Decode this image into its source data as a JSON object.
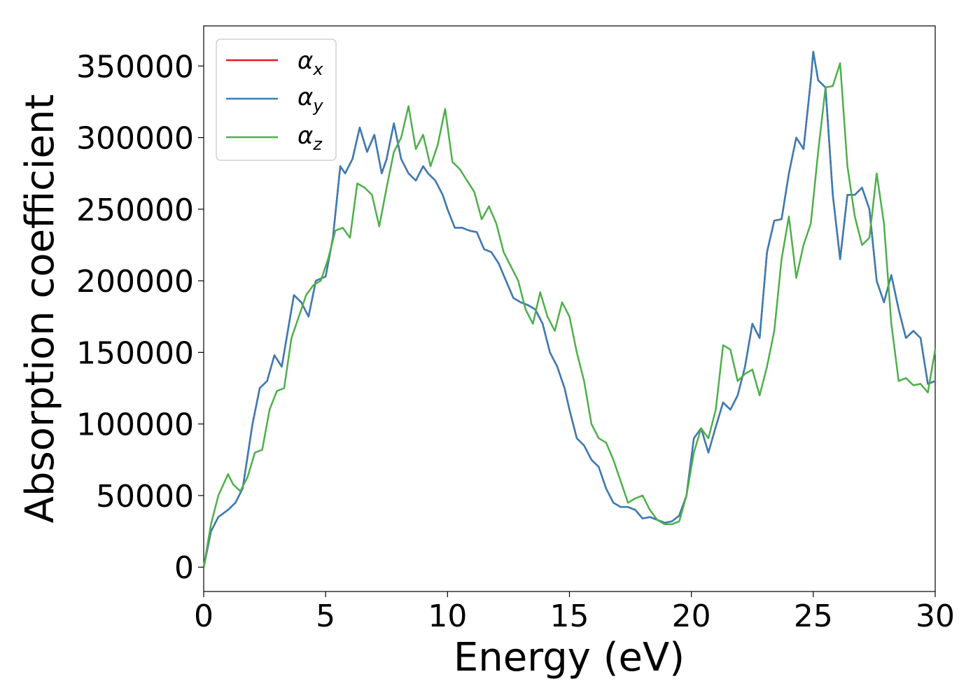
{
  "chart_data": {
    "type": "line",
    "title": "",
    "xlabel": "Energy (eV)",
    "ylabel": "Absorption coefficient",
    "xlim": [
      0,
      30
    ],
    "ylim": [
      -17000,
      378000
    ],
    "xticks": [
      0,
      5,
      10,
      15,
      20,
      25,
      30
    ],
    "yticks": [
      0,
      50000,
      100000,
      150000,
      200000,
      250000,
      300000,
      350000
    ],
    "grid": false,
    "legend_position": "top-left",
    "legend": [
      {
        "symbol": "α",
        "subscript": "x"
      },
      {
        "symbol": "α",
        "subscript": "y"
      },
      {
        "symbol": "α",
        "subscript": "z"
      }
    ],
    "series": [
      {
        "name": "αx",
        "color": "#e41a1c",
        "x": [
          0,
          0.3,
          0.6,
          1.0,
          1.3,
          1.6,
          2.0,
          2.3,
          2.6,
          2.9,
          3.2,
          3.5,
          3.7,
          4.0,
          4.3,
          4.6,
          5.0,
          5.3,
          5.6,
          5.8,
          6.1,
          6.4,
          6.7,
          7.0,
          7.3,
          7.5,
          7.8,
          8.1,
          8.4,
          8.7,
          9.0,
          9.2,
          9.5,
          9.8,
          10.0,
          10.3,
          10.6,
          10.9,
          11.2,
          11.5,
          11.8,
          12.1,
          12.4,
          12.7,
          13.0,
          13.3,
          13.6,
          13.9,
          14.2,
          14.5,
          14.8,
          15.0,
          15.3,
          15.6,
          15.9,
          16.2,
          16.5,
          16.8,
          17.1,
          17.4,
          17.7,
          18.0,
          18.3,
          18.6,
          18.9,
          19.2,
          19.5,
          19.8,
          20.1,
          20.4,
          20.7,
          21.0,
          21.3,
          21.6,
          21.9,
          22.2,
          22.5,
          22.8,
          23.1,
          23.4,
          23.7,
          24.0,
          24.3,
          24.6,
          24.9,
          25.0,
          25.2,
          25.5,
          25.8,
          26.1,
          26.4,
          26.7,
          27.0,
          27.3,
          27.6,
          27.9,
          28.2,
          28.5,
          28.8,
          29.1,
          29.4,
          29.7,
          30.0
        ],
        "y": [
          0,
          25000,
          35000,
          40000,
          45000,
          55000,
          100000,
          125000,
          130000,
          148000,
          140000,
          170000,
          190000,
          185000,
          175000,
          200000,
          203000,
          230000,
          280000,
          275000,
          285000,
          307000,
          290000,
          302000,
          275000,
          285000,
          310000,
          285000,
          275000,
          270000,
          280000,
          275000,
          270000,
          260000,
          250000,
          237000,
          237000,
          235000,
          234000,
          222000,
          220000,
          212000,
          200000,
          188000,
          185000,
          183000,
          180000,
          170000,
          150000,
          140000,
          125000,
          110000,
          90000,
          85000,
          75000,
          70000,
          55000,
          45000,
          42000,
          42000,
          40000,
          34000,
          35000,
          33000,
          31000,
          32000,
          36000,
          50000,
          90000,
          97000,
          80000,
          98000,
          115000,
          110000,
          120000,
          140000,
          170000,
          160000,
          220000,
          242000,
          243000,
          275000,
          300000,
          292000,
          340000,
          360000,
          340000,
          335000,
          260000,
          215000,
          260000,
          260000,
          265000,
          250000,
          200000,
          185000,
          204000,
          180000,
          160000,
          165000,
          160000,
          128000,
          130000
        ]
      },
      {
        "name": "αy",
        "color": "#377eb8",
        "x": [
          0,
          0.3,
          0.6,
          1.0,
          1.3,
          1.6,
          2.0,
          2.3,
          2.6,
          2.9,
          3.2,
          3.5,
          3.7,
          4.0,
          4.3,
          4.6,
          5.0,
          5.3,
          5.6,
          5.8,
          6.1,
          6.4,
          6.7,
          7.0,
          7.3,
          7.5,
          7.8,
          8.1,
          8.4,
          8.7,
          9.0,
          9.2,
          9.5,
          9.8,
          10.0,
          10.3,
          10.6,
          10.9,
          11.2,
          11.5,
          11.8,
          12.1,
          12.4,
          12.7,
          13.0,
          13.3,
          13.6,
          13.9,
          14.2,
          14.5,
          14.8,
          15.0,
          15.3,
          15.6,
          15.9,
          16.2,
          16.5,
          16.8,
          17.1,
          17.4,
          17.7,
          18.0,
          18.3,
          18.6,
          18.9,
          19.2,
          19.5,
          19.8,
          20.1,
          20.4,
          20.7,
          21.0,
          21.3,
          21.6,
          21.9,
          22.2,
          22.5,
          22.8,
          23.1,
          23.4,
          23.7,
          24.0,
          24.3,
          24.6,
          24.9,
          25.0,
          25.2,
          25.5,
          25.8,
          26.1,
          26.4,
          26.7,
          27.0,
          27.3,
          27.6,
          27.9,
          28.2,
          28.5,
          28.8,
          29.1,
          29.4,
          29.7,
          30.0
        ],
        "y": [
          0,
          25000,
          35000,
          40000,
          45000,
          55000,
          100000,
          125000,
          130000,
          148000,
          140000,
          170000,
          190000,
          185000,
          175000,
          200000,
          203000,
          230000,
          280000,
          275000,
          285000,
          307000,
          290000,
          302000,
          275000,
          285000,
          310000,
          285000,
          275000,
          270000,
          280000,
          275000,
          270000,
          260000,
          250000,
          237000,
          237000,
          235000,
          234000,
          222000,
          220000,
          212000,
          200000,
          188000,
          185000,
          183000,
          180000,
          170000,
          150000,
          140000,
          125000,
          110000,
          90000,
          85000,
          75000,
          70000,
          55000,
          45000,
          42000,
          42000,
          40000,
          34000,
          35000,
          33000,
          31000,
          32000,
          36000,
          50000,
          90000,
          97000,
          80000,
          98000,
          115000,
          110000,
          120000,
          140000,
          170000,
          160000,
          220000,
          242000,
          243000,
          275000,
          300000,
          292000,
          340000,
          360000,
          340000,
          335000,
          260000,
          215000,
          260000,
          260000,
          265000,
          250000,
          200000,
          185000,
          204000,
          180000,
          160000,
          165000,
          160000,
          128000,
          130000
        ]
      },
      {
        "name": "αz",
        "color": "#4daf4a",
        "x": [
          0,
          0.3,
          0.6,
          1.0,
          1.2,
          1.5,
          1.8,
          2.1,
          2.4,
          2.7,
          3.0,
          3.3,
          3.6,
          3.9,
          4.2,
          4.5,
          4.8,
          5.1,
          5.4,
          5.7,
          6.0,
          6.3,
          6.6,
          6.9,
          7.2,
          7.5,
          7.8,
          8.1,
          8.4,
          8.7,
          9.0,
          9.3,
          9.6,
          9.9,
          10.2,
          10.5,
          10.8,
          11.1,
          11.4,
          11.7,
          12.0,
          12.3,
          12.6,
          12.9,
          13.2,
          13.5,
          13.8,
          14.1,
          14.4,
          14.7,
          15.0,
          15.3,
          15.6,
          15.9,
          16.2,
          16.5,
          16.8,
          17.1,
          17.4,
          17.7,
          18.0,
          18.3,
          18.6,
          18.9,
          19.2,
          19.5,
          19.8,
          20.1,
          20.4,
          20.7,
          21.0,
          21.3,
          21.6,
          21.9,
          22.2,
          22.5,
          22.8,
          23.1,
          23.4,
          23.7,
          24.0,
          24.3,
          24.6,
          24.9,
          25.2,
          25.5,
          25.8,
          26.1,
          26.4,
          26.7,
          27.0,
          27.3,
          27.6,
          27.9,
          28.2,
          28.5,
          28.8,
          29.1,
          29.4,
          29.7,
          30.0
        ],
        "y": [
          0,
          30000,
          50000,
          65000,
          58000,
          53000,
          63000,
          80000,
          82000,
          110000,
          123000,
          125000,
          160000,
          175000,
          190000,
          197000,
          200000,
          215000,
          235000,
          237000,
          230000,
          268000,
          265000,
          260000,
          238000,
          265000,
          290000,
          300000,
          322000,
          292000,
          302000,
          280000,
          295000,
          320000,
          283000,
          278000,
          270000,
          262000,
          243000,
          252000,
          240000,
          220000,
          210000,
          200000,
          180000,
          170000,
          192000,
          175000,
          165000,
          185000,
          175000,
          150000,
          130000,
          100000,
          90000,
          87000,
          75000,
          60000,
          45000,
          48000,
          50000,
          40000,
          33000,
          30000,
          30000,
          32000,
          50000,
          80000,
          97000,
          90000,
          110000,
          155000,
          152000,
          130000,
          135000,
          138000,
          120000,
          140000,
          165000,
          215000,
          245000,
          202000,
          225000,
          240000,
          290000,
          335000,
          336000,
          352000,
          280000,
          245000,
          225000,
          230000,
          275000,
          240000,
          170000,
          130000,
          132000,
          127000,
          128000,
          122000,
          152000
        ]
      }
    ]
  }
}
